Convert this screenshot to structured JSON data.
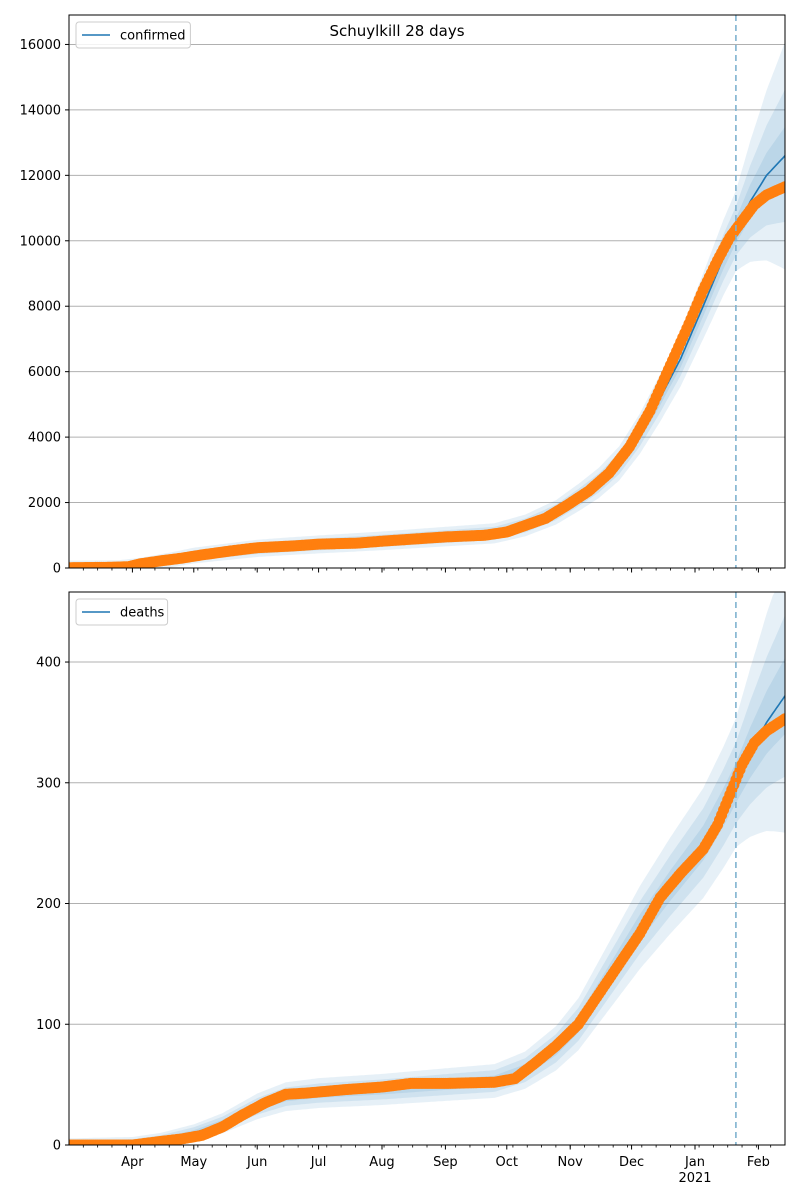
{
  "title": "Schuylkill 28 days",
  "colors": {
    "model": "#1f77b4",
    "observed": "#ff7f0e",
    "band": "#1f77b4",
    "forecast_line": "#7fb2d0",
    "grid": "#b0b0b0"
  },
  "chart_data": [
    {
      "type": "line",
      "name": "confirmed-panel",
      "x_range": [
        "2020-03-01",
        "2021-02-14"
      ],
      "ylim": [
        0,
        16900
      ],
      "y_ticks": [
        0,
        2000,
        4000,
        6000,
        8000,
        10000,
        12000,
        14000,
        16000
      ],
      "x_ticks": [
        {
          "date": "2020-04-01",
          "label": "Apr"
        },
        {
          "date": "2020-05-01",
          "label": "May"
        },
        {
          "date": "2020-06-01",
          "label": "Jun"
        },
        {
          "date": "2020-07-01",
          "label": "Jul"
        },
        {
          "date": "2020-08-01",
          "label": "Aug"
        },
        {
          "date": "2020-09-01",
          "label": "Sep"
        },
        {
          "date": "2020-10-01",
          "label": "Oct"
        },
        {
          "date": "2020-11-01",
          "label": "Nov"
        },
        {
          "date": "2020-12-01",
          "label": "Dec"
        },
        {
          "date": "2021-01-01",
          "label": "Jan",
          "sublabel": "2021"
        },
        {
          "date": "2021-02-01",
          "label": "Feb"
        }
      ],
      "grid": "y",
      "legend": {
        "position": "top-left",
        "entries": [
          "confirmed"
        ]
      },
      "forecast_start": "2021-01-21",
      "model": {
        "name": "confirmed",
        "x": [
          "2020-03-01",
          "2020-03-25",
          "2020-04-05",
          "2020-04-20",
          "2020-05-01",
          "2020-05-15",
          "2020-06-01",
          "2020-06-15",
          "2020-07-01",
          "2020-08-01",
          "2020-09-01",
          "2020-09-25",
          "2020-10-10",
          "2020-10-25",
          "2020-11-05",
          "2020-11-15",
          "2020-11-25",
          "2020-12-05",
          "2020-12-15",
          "2020-12-25",
          "2021-01-05",
          "2021-01-15",
          "2021-01-21",
          "2021-01-28",
          "2021-02-05",
          "2021-02-14"
        ],
        "y": [
          20,
          30,
          100,
          250,
          380,
          480,
          600,
          660,
          720,
          830,
          960,
          1060,
          1300,
          1700,
          2150,
          2600,
          3200,
          4100,
          5200,
          6400,
          8000,
          9500,
          10300,
          11200,
          12000,
          12600
        ]
      },
      "band_scale": [
        0.03,
        0.06,
        0.1
      ],
      "band_widen": [
        0.035,
        0.09,
        0.16
      ],
      "observed": {
        "x": [
          "2020-03-01",
          "2020-03-20",
          "2020-03-30",
          "2020-04-05",
          "2020-04-15",
          "2020-04-25",
          "2020-05-05",
          "2020-05-20",
          "2020-06-01",
          "2020-06-20",
          "2020-07-01",
          "2020-07-20",
          "2020-08-01",
          "2020-08-20",
          "2020-09-01",
          "2020-09-20",
          "2020-10-01",
          "2020-10-10",
          "2020-10-20",
          "2020-10-30",
          "2020-11-10",
          "2020-11-20",
          "2020-11-30",
          "2020-12-10",
          "2020-12-20",
          "2020-12-30",
          "2021-01-05",
          "2021-01-12",
          "2021-01-18",
          "2021-01-24",
          "2021-01-30",
          "2021-02-05",
          "2021-02-14"
        ],
        "y": [
          10,
          20,
          40,
          130,
          220,
          300,
          400,
          530,
          620,
          680,
          730,
          760,
          820,
          900,
          950,
          1000,
          1100,
          1300,
          1520,
          1900,
          2350,
          2900,
          3700,
          4800,
          6200,
          7600,
          8500,
          9400,
          10100,
          10600,
          11100,
          11400,
          11650
        ]
      }
    },
    {
      "type": "line",
      "name": "deaths-panel",
      "x_range": [
        "2020-03-01",
        "2021-02-14"
      ],
      "ylim": [
        0,
        458
      ],
      "y_ticks": [
        0,
        100,
        200,
        300,
        400
      ],
      "x_ticks": [
        {
          "date": "2020-04-01",
          "label": "Apr"
        },
        {
          "date": "2020-05-01",
          "label": "May"
        },
        {
          "date": "2020-06-01",
          "label": "Jun"
        },
        {
          "date": "2020-07-01",
          "label": "Jul"
        },
        {
          "date": "2020-08-01",
          "label": "Aug"
        },
        {
          "date": "2020-09-01",
          "label": "Sep"
        },
        {
          "date": "2020-10-01",
          "label": "Oct"
        },
        {
          "date": "2020-11-01",
          "label": "Nov"
        },
        {
          "date": "2020-12-01",
          "label": "Dec"
        },
        {
          "date": "2021-01-01",
          "label": "Jan",
          "sublabel": "2021"
        },
        {
          "date": "2021-02-01",
          "label": "Feb"
        }
      ],
      "grid": "y",
      "legend": {
        "position": "top-left",
        "entries": [
          "deaths"
        ]
      },
      "forecast_start": "2021-01-21",
      "model": {
        "name": "deaths",
        "x": [
          "2020-03-01",
          "2020-04-01",
          "2020-04-15",
          "2020-05-01",
          "2020-05-15",
          "2020-06-01",
          "2020-06-15",
          "2020-07-01",
          "2020-08-01",
          "2020-09-01",
          "2020-09-25",
          "2020-10-10",
          "2020-10-25",
          "2020-11-05",
          "2020-11-20",
          "2020-12-05",
          "2020-12-20",
          "2021-01-05",
          "2021-01-15",
          "2021-01-21",
          "2021-01-28",
          "2021-02-05",
          "2021-02-14"
        ],
        "y": [
          0,
          1,
          4,
          10,
          18,
          32,
          40,
          43,
          46,
          50,
          53,
          62,
          80,
          100,
          140,
          180,
          215,
          250,
          280,
          300,
          325,
          350,
          372
        ]
      },
      "band_scale": [
        0.05,
        0.1,
        0.16
      ],
      "band_widen": [
        0.03,
        0.07,
        0.13
      ],
      "observed": {
        "x": [
          "2020-03-01",
          "2020-04-01",
          "2020-04-15",
          "2020-04-25",
          "2020-05-05",
          "2020-05-15",
          "2020-05-25",
          "2020-06-05",
          "2020-06-15",
          "2020-06-25",
          "2020-07-15",
          "2020-08-01",
          "2020-08-15",
          "2020-09-01",
          "2020-09-25",
          "2020-10-05",
          "2020-10-15",
          "2020-10-25",
          "2020-11-05",
          "2020-11-15",
          "2020-11-25",
          "2020-12-05",
          "2020-12-15",
          "2020-12-25",
          "2021-01-05",
          "2021-01-12",
          "2021-01-18",
          "2021-01-24",
          "2021-01-30",
          "2021-02-05",
          "2021-02-14"
        ],
        "y": [
          0,
          0,
          3,
          5,
          8,
          15,
          25,
          35,
          42,
          43,
          46,
          48,
          51,
          51,
          52,
          55,
          68,
          82,
          100,
          125,
          150,
          175,
          205,
          225,
          245,
          265,
          290,
          315,
          333,
          343,
          353
        ]
      }
    }
  ]
}
